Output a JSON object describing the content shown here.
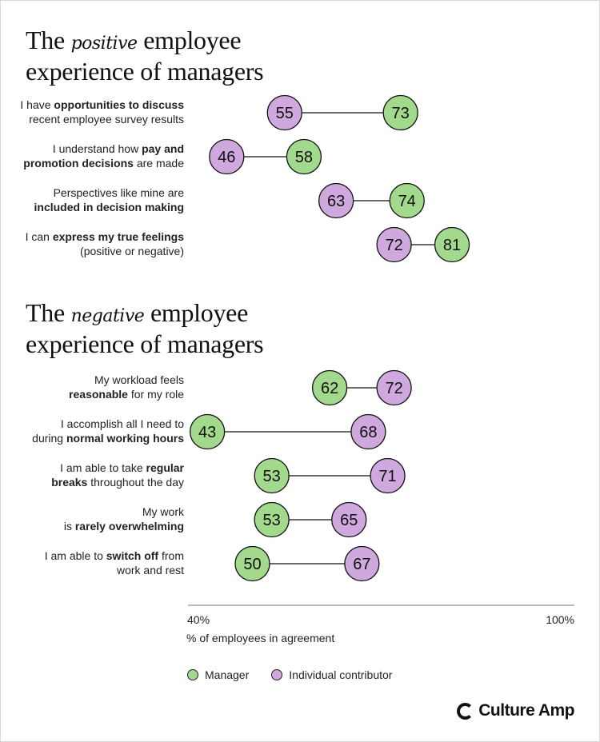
{
  "sections": [
    {
      "title": {
        "before": "The",
        "emphasis": "positive",
        "after": "employee",
        "line2": "experience of managers"
      },
      "rows": [
        {
          "lines": [
            [
              {
                "t": "I have ",
                "b": false
              },
              {
                "t": "opportunities to discuss",
                "b": true
              }
            ],
            [
              {
                "t": "recent employee survey results",
                "b": false
              }
            ]
          ],
          "manager": 73,
          "ic": 55
        },
        {
          "lines": [
            [
              {
                "t": "I understand how ",
                "b": false
              },
              {
                "t": "pay and",
                "b": true
              }
            ],
            [
              {
                "t": "promotion decisions",
                "b": true
              },
              {
                "t": " are made",
                "b": false
              }
            ]
          ],
          "manager": 58,
          "ic": 46
        },
        {
          "lines": [
            [
              {
                "t": "Perspectives like mine are",
                "b": false
              }
            ],
            [
              {
                "t": "included in decision making",
                "b": true
              }
            ]
          ],
          "manager": 74,
          "ic": 63
        },
        {
          "lines": [
            [
              {
                "t": "I can ",
                "b": false
              },
              {
                "t": "express my true feelings",
                "b": true
              }
            ],
            [
              {
                "t": "(positive or negative)",
                "b": false
              }
            ]
          ],
          "manager": 81,
          "ic": 72
        }
      ]
    },
    {
      "title": {
        "before": "The",
        "emphasis": "negative",
        "after": "employee",
        "line2": "experience of managers"
      },
      "rows": [
        {
          "lines": [
            [
              {
                "t": "My workload feels",
                "b": false
              }
            ],
            [
              {
                "t": "reasonable",
                "b": true
              },
              {
                "t": " for my role",
                "b": false
              }
            ]
          ],
          "manager": 62,
          "ic": 72
        },
        {
          "lines": [
            [
              {
                "t": "I accomplish all I need to",
                "b": false
              }
            ],
            [
              {
                "t": "during ",
                "b": false
              },
              {
                "t": "normal working hours",
                "b": true
              }
            ]
          ],
          "manager": 43,
          "ic": 68
        },
        {
          "lines": [
            [
              {
                "t": "I am able to take ",
                "b": false
              },
              {
                "t": "regular",
                "b": true
              }
            ],
            [
              {
                "t": "breaks",
                "b": true
              },
              {
                "t": " throughout the day",
                "b": false
              }
            ]
          ],
          "manager": 53,
          "ic": 71
        },
        {
          "lines": [
            [
              {
                "t": "My work",
                "b": false
              }
            ],
            [
              {
                "t": "is ",
                "b": false
              },
              {
                "t": "rarely overwhelming",
                "b": true
              }
            ]
          ],
          "manager": 53,
          "ic": 65
        },
        {
          "lines": [
            [
              {
                "t": "I am able to ",
                "b": false
              },
              {
                "t": "switch off",
                "b": true
              },
              {
                "t": " from",
                "b": false
              }
            ],
            [
              {
                "t": "work and rest",
                "b": false
              }
            ]
          ],
          "manager": 50,
          "ic": 67
        }
      ]
    }
  ],
  "chart_data": {
    "type": "dumbbell",
    "xlabel": "% of employees in agreement",
    "xlim": [
      40,
      100
    ],
    "tick_labels": [
      "40%",
      "100%"
    ],
    "series": [
      {
        "name": "Manager",
        "color": "#a3d98c"
      },
      {
        "name": "Individual contributor",
        "color": "#cfa8de"
      }
    ]
  },
  "legend": {
    "manager": "Manager",
    "ic": "Individual contributor"
  },
  "brand": "Culture Amp"
}
